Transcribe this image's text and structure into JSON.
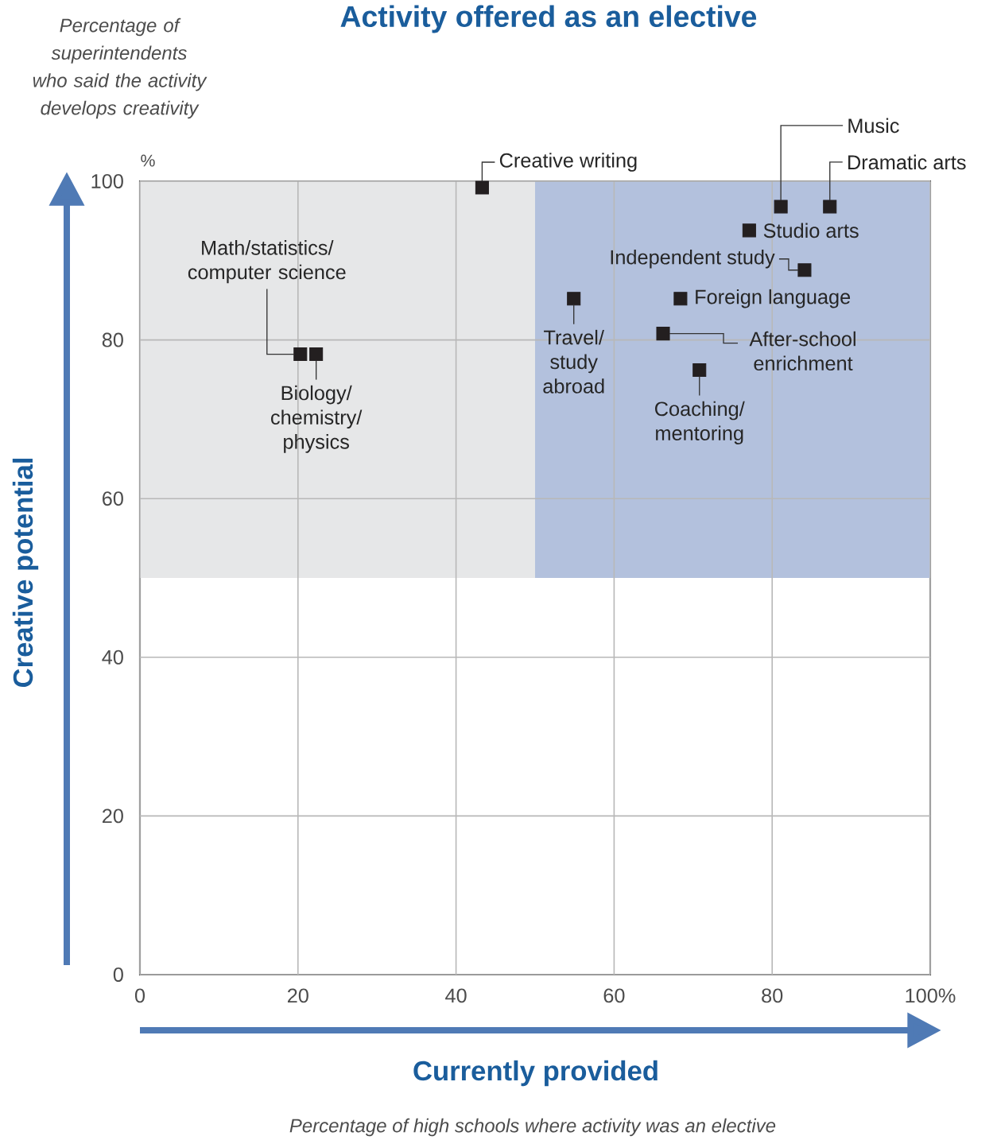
{
  "chart_data": {
    "type": "scatter",
    "title": "Activity offered as an elective",
    "xlabel": "Currently provided",
    "ylabel": "Creative potential",
    "x": [
      20.3,
      22.3,
      43.3,
      54.9,
      77.1,
      81.1,
      87.3,
      84.1,
      68.4,
      66.2,
      70.8
    ],
    "values": [
      78.2,
      78.2,
      99.2,
      85.2,
      93.8,
      96.8,
      96.8,
      88.8,
      85.2,
      80.8,
      76.2
    ],
    "color": "#231f20",
    "marker": "square",
    "xlim": [
      0,
      100
    ],
    "ylim": [
      0,
      100
    ],
    "xticks": [
      0,
      20,
      40,
      60,
      80,
      {
        "value": 100,
        "label": "100%"
      }
    ],
    "yticks": [
      0,
      20,
      40,
      60,
      80,
      100
    ],
    "grid": true,
    "bands": [
      {
        "axis": "y",
        "from": 50,
        "to": 100,
        "color": "#e6e7e8"
      },
      {
        "axis": "x",
        "from": 50,
        "to": 100,
        "color": "#b3c1dd"
      }
    ],
    "annotations": [
      "Percentage of superintendents who said the activity develops creativity",
      "%",
      "Percentage of high schools where activity was an elective",
      {
        "text": "Math/statistics/computer science",
        "x": 20.3,
        "y": 78.2
      },
      {
        "text": "Biology/chemistry/physics",
        "x": 22.3,
        "y": 78.2
      },
      {
        "text": "Creative writing",
        "x": 43.3,
        "y": 99.2
      },
      {
        "text": "Travel/study abroad",
        "x": 54.9,
        "y": 85.2
      },
      {
        "text": "Studio arts",
        "x": 77.1,
        "y": 93.8
      },
      {
        "text": "Music",
        "x": 81.1,
        "y": 96.8
      },
      {
        "text": "Dramatic arts",
        "x": 87.3,
        "y": 96.8
      },
      {
        "text": "Independent study",
        "x": 84.1,
        "y": 88.8
      },
      {
        "text": "Foreign language",
        "x": 68.4,
        "y": 85.2
      },
      {
        "text": "After-school enrichment",
        "x": 66.2,
        "y": 80.8
      },
      {
        "text": "Coaching/mentoring",
        "x": 70.8,
        "y": 76.2
      }
    ]
  }
}
